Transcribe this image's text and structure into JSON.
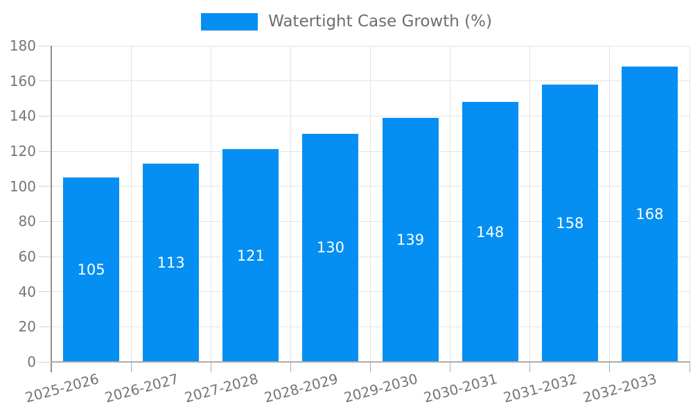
{
  "legend": {
    "label": "Watertight Case Growth (%)"
  },
  "chart_data": {
    "type": "bar",
    "title": "Watertight Case Growth (%)",
    "categories": [
      "2025-2026",
      "2026-2027",
      "2027-2028",
      "2028-2029",
      "2029-2030",
      "2030-2031",
      "2031-2032",
      "2032-2033"
    ],
    "values": [
      105,
      113,
      121,
      130,
      139,
      148,
      158,
      168
    ],
    "xlabel": "",
    "ylabel": "",
    "ylim": [
      0,
      180
    ],
    "ytick_step": 20,
    "yticks": [
      0,
      20,
      40,
      60,
      80,
      100,
      120,
      140,
      160,
      180
    ],
    "grid": true,
    "legend_position": "top",
    "colors": {
      "bar": "#058FF2",
      "value_label": "#ffffff",
      "axis_text": "#757575",
      "legend_text": "#6d6d6d",
      "gridline": "#e3e3e3",
      "axis_line": "#8f8f8f"
    }
  }
}
